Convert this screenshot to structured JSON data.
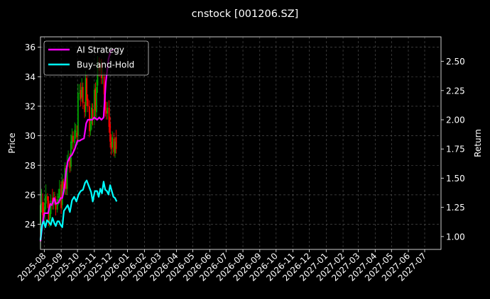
{
  "chart_data": {
    "type": "line",
    "title": "cnstock [001206.SZ]",
    "ylabel_left": "Price",
    "ylabel_right": "Return",
    "x_tick_labels": [
      "2025-08",
      "2025-09",
      "2025-10",
      "2025-11",
      "2025-12",
      "2026-01",
      "2026-02",
      "2026-03",
      "2026-04",
      "2026-05",
      "2026-06",
      "2026-07",
      "2026-08",
      "2026-09",
      "2026-10",
      "2026-11",
      "2026-12",
      "2027-01",
      "2027-02",
      "2027-03",
      "2027-04",
      "2027-05",
      "2027-06",
      "2027-07"
    ],
    "x_range": [
      "2025-07-25",
      "2027-07-31"
    ],
    "y_left_ticks": [
      24,
      26,
      28,
      30,
      32,
      34,
      36
    ],
    "y_left_range": [
      22.3,
      36.7
    ],
    "y_right_ticks": [
      1.0,
      1.25,
      1.5,
      1.75,
      2.0,
      2.25,
      2.5
    ],
    "y_right_range": [
      0.89,
      2.71
    ],
    "grid": true,
    "legend_position": "top-left",
    "series": [
      {
        "name": "AI Strategy",
        "axis": "right",
        "color": "#ff00ff",
        "x": [
          "2025-07-25",
          "2025-07-29",
          "2025-08-01",
          "2025-08-04",
          "2025-08-08",
          "2025-08-12",
          "2025-08-15",
          "2025-08-19",
          "2025-08-22",
          "2025-08-27",
          "2025-08-31",
          "2025-09-03",
          "2025-09-07",
          "2025-09-10",
          "2025-09-13",
          "2025-09-17",
          "2025-09-21",
          "2025-09-26",
          "2025-10-01",
          "2025-10-05",
          "2025-10-08",
          "2025-10-13",
          "2025-10-17",
          "2025-10-20",
          "2025-10-24",
          "2025-10-28",
          "2025-11-01",
          "2025-11-06",
          "2025-11-10",
          "2025-11-14",
          "2025-11-18",
          "2025-11-22",
          "2025-11-27",
          "2025-12-01",
          "2025-12-05",
          "2025-12-08"
        ],
        "values": [
          0.96,
          1.12,
          1.2,
          1.2,
          1.2,
          1.28,
          1.27,
          1.33,
          1.28,
          1.29,
          1.33,
          1.33,
          1.42,
          1.55,
          1.64,
          1.68,
          1.7,
          1.75,
          1.82,
          1.82,
          1.83,
          1.84,
          1.97,
          2.0,
          2.0,
          2.0,
          2.02,
          2.0,
          2.02,
          2.0,
          2.02,
          2.32,
          2.52,
          2.59,
          2.6,
          2.6
        ]
      },
      {
        "name": "Buy-and-Hold",
        "axis": "right",
        "color": "#00ffff",
        "x": [
          "2025-07-25",
          "2025-07-28",
          "2025-07-31",
          "2025-08-03",
          "2025-08-06",
          "2025-08-10",
          "2025-08-13",
          "2025-08-16",
          "2025-08-19",
          "2025-08-22",
          "2025-08-25",
          "2025-08-28",
          "2025-08-31",
          "2025-09-03",
          "2025-09-06",
          "2025-09-09",
          "2025-09-13",
          "2025-09-17",
          "2025-09-21",
          "2025-09-25",
          "2025-09-29",
          "2025-10-03",
          "2025-10-07",
          "2025-10-11",
          "2025-10-15",
          "2025-10-18",
          "2025-10-22",
          "2025-10-26",
          "2025-10-29",
          "2025-11-02",
          "2025-11-06",
          "2025-11-09",
          "2025-11-12",
          "2025-11-15",
          "2025-11-18",
          "2025-11-21",
          "2025-11-24",
          "2025-11-27",
          "2025-11-30",
          "2025-12-03",
          "2025-12-06",
          "2025-12-09",
          "2025-12-12"
        ],
        "values": [
          0.97,
          1.1,
          1.13,
          1.08,
          1.14,
          1.12,
          1.1,
          1.16,
          1.12,
          1.09,
          1.13,
          1.13,
          1.1,
          1.08,
          1.22,
          1.24,
          1.27,
          1.21,
          1.31,
          1.34,
          1.3,
          1.36,
          1.39,
          1.4,
          1.46,
          1.48,
          1.43,
          1.38,
          1.3,
          1.39,
          1.39,
          1.34,
          1.41,
          1.37,
          1.47,
          1.4,
          1.39,
          1.36,
          1.44,
          1.39,
          1.34,
          1.33,
          1.3
        ]
      }
    ],
    "candles": {
      "axis": "left",
      "up_color": "#00aa00",
      "down_color": "#ff0000",
      "x": [
        "2025-07-25",
        "2025-07-27",
        "2025-07-29",
        "2025-07-31",
        "2025-08-02",
        "2025-08-04",
        "2025-08-07",
        "2025-08-09",
        "2025-08-11",
        "2025-08-13",
        "2025-08-16",
        "2025-08-18",
        "2025-08-20",
        "2025-08-22",
        "2025-08-25",
        "2025-08-27",
        "2025-08-29",
        "2025-09-01",
        "2025-09-03",
        "2025-09-05",
        "2025-09-08",
        "2025-09-10",
        "2025-09-12",
        "2025-09-14",
        "2025-09-17",
        "2025-09-19",
        "2025-09-21",
        "2025-09-23",
        "2025-09-26",
        "2025-09-28",
        "2025-09-30",
        "2025-10-02",
        "2025-10-05",
        "2025-10-07",
        "2025-10-09",
        "2025-10-11",
        "2025-10-14",
        "2025-10-16",
        "2025-10-18",
        "2025-10-20",
        "2025-10-23",
        "2025-10-25",
        "2025-10-27",
        "2025-10-29",
        "2025-11-01",
        "2025-11-03",
        "2025-11-05",
        "2025-11-07",
        "2025-11-10",
        "2025-11-12",
        "2025-11-14",
        "2025-11-16",
        "2025-11-19",
        "2025-11-21",
        "2025-11-23",
        "2025-11-25",
        "2025-11-28",
        "2025-11-30",
        "2025-12-02",
        "2025-12-04",
        "2025-12-07",
        "2025-12-09",
        "2025-12-11"
      ],
      "open": [
        24.0,
        25.3,
        25.5,
        25.1,
        24.7,
        25.4,
        25.9,
        25.6,
        24.2,
        24.7,
        25.8,
        25.4,
        25.8,
        25.7,
        25.0,
        25.8,
        25.8,
        26.7,
        25.3,
        26.9,
        26.4,
        27.8,
        26.4,
        28.3,
        28.5,
        27.9,
        29.5,
        30.0,
        29.5,
        30.3,
        30.2,
        30.0,
        32.9,
        33.1,
        32.6,
        33.3,
        32.1,
        31.6,
        33.9,
        32.5,
        32.0,
        30.3,
        30.8,
        31.8,
        31.1,
        33.2,
        31.6,
        33.4,
        34.8,
        34.5,
        34.8,
        34.0,
        34.0,
        32.7,
        31.7,
        31.5,
        31.9,
        30.8,
        29.6,
        29.2,
        29.8,
        28.8,
        29.9
      ],
      "close": [
        25.3,
        25.4,
        24.6,
        24.7,
        25.4,
        26.0,
        25.6,
        24.1,
        24.8,
        25.6,
        25.4,
        25.8,
        25.6,
        25.0,
        25.7,
        25.9,
        26.4,
        25.1,
        27.0,
        26.4,
        27.8,
        26.4,
        28.2,
        28.4,
        27.8,
        29.6,
        30.0,
        29.6,
        30.4,
        30.3,
        29.9,
        32.9,
        32.9,
        32.5,
        33.3,
        32.2,
        31.6,
        33.9,
        32.4,
        32.0,
        30.3,
        30.8,
        31.9,
        31.1,
        33.1,
        31.7,
        33.3,
        34.9,
        34.4,
        34.8,
        33.9,
        34.0,
        32.8,
        31.7,
        31.5,
        31.9,
        30.6,
        29.6,
        29.1,
        29.9,
        28.9,
        29.6,
        29.1
      ],
      "high": [
        26.2,
        26.4,
        26.1,
        25.5,
        25.9,
        26.7,
        26.1,
        25.9,
        25.2,
        26.0,
        26.4,
        26.2,
        26.2,
        25.9,
        26.1,
        26.4,
        27.0,
        26.9,
        27.4,
        27.1,
        28.2,
        28.0,
        28.7,
        29.0,
        28.8,
        30.1,
        30.5,
        30.3,
        30.9,
        30.8,
        30.7,
        33.5,
        33.5,
        33.6,
        33.9,
        33.6,
        32.3,
        34.4,
        34.1,
        32.8,
        32.4,
        31.2,
        32.2,
        32.2,
        33.5,
        33.6,
        33.8,
        35.4,
        35.3,
        35.1,
        35.2,
        34.6,
        34.3,
        33.2,
        32.3,
        32.3,
        32.4,
        31.3,
        30.1,
        30.3,
        30.2,
        29.9,
        30.4
      ],
      "low": [
        22.4,
        24.8,
        24.1,
        24.2,
        24.3,
        25.0,
        25.1,
        23.9,
        23.8,
        24.4,
        25.0,
        25.0,
        25.3,
        24.6,
        24.8,
        25.3,
        25.4,
        24.7,
        25.0,
        26.0,
        26.0,
        26.0,
        26.0,
        27.9,
        27.5,
        27.6,
        29.1,
        29.0,
        29.1,
        29.8,
        29.6,
        29.5,
        32.4,
        32.0,
        32.3,
        31.8,
        31.2,
        31.3,
        32.0,
        31.6,
        29.9,
        30.0,
        30.4,
        30.7,
        30.7,
        31.3,
        31.2,
        32.9,
        34.0,
        34.1,
        33.5,
        33.5,
        32.3,
        31.3,
        31.1,
        31.1,
        30.2,
        29.2,
        28.7,
        28.8,
        28.6,
        28.5,
        28.8
      ]
    }
  }
}
